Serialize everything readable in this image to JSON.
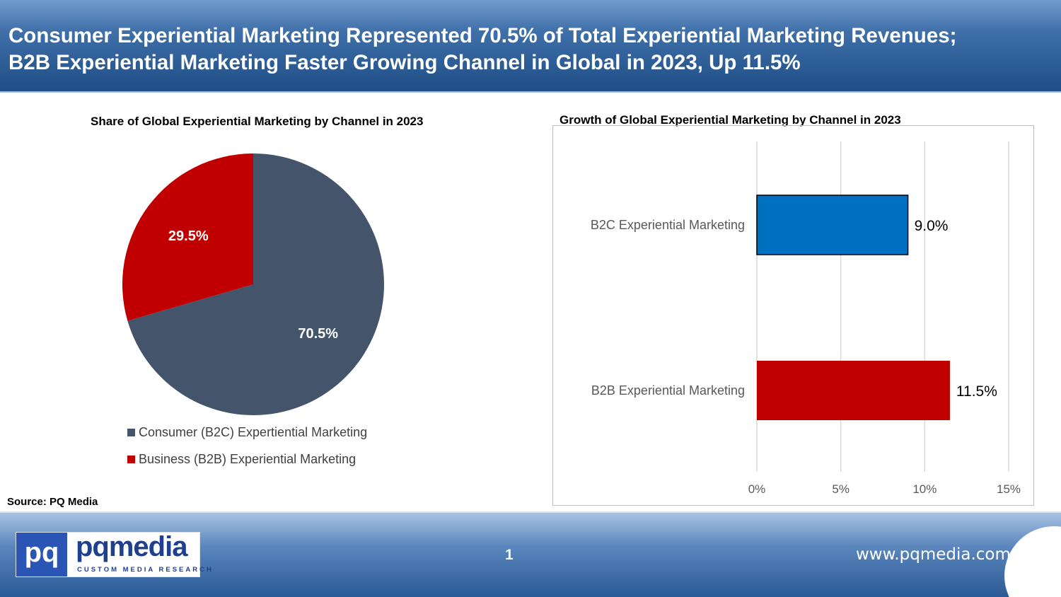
{
  "header": {
    "title_line1": "Consumer Experiential Marketing Represented 70.5% of Total Experiential Marketing Revenues;",
    "title_line2": "B2B Experiential Marketing Faster Growing Channel in Global in 2023, Up 11.5%"
  },
  "source": "Source: PQ Media",
  "footer": {
    "logo_pq": "pq",
    "logo_word": "pqmedia",
    "logo_tagline": "CUSTOM MEDIA RESEARCH",
    "page_number": "1",
    "url": "www.pqmedia.com"
  },
  "colors": {
    "b2c_pie": "#44546a",
    "b2b": "#c00000",
    "b2c_bar": "#0070c0",
    "header": "#2f5e98"
  },
  "chart_data": [
    {
      "type": "pie",
      "title": "Share of Global Experiential Marketing by Channel in 2023",
      "slices": [
        {
          "name": "Consumer (B2C) Expertiential Marketing",
          "value": 70.5,
          "label": "70.5%",
          "color": "#44546a"
        },
        {
          "name": "Business (B2B) Experiential Marketing",
          "value": 29.5,
          "label": "29.5%",
          "color": "#c00000"
        }
      ],
      "legend_position": "bottom"
    },
    {
      "type": "bar",
      "orientation": "horizontal",
      "title": "Growth of Global Experiential Marketing by Channel in 2023",
      "categories": [
        "B2C Experiential Marketing",
        "B2B Experiential Marketing"
      ],
      "values": [
        9.0,
        11.5
      ],
      "value_labels": [
        "9.0%",
        "11.5%"
      ],
      "colors": [
        "#0070c0",
        "#c00000"
      ],
      "xlim": [
        0,
        15
      ],
      "xticks": [
        0,
        5,
        10,
        15
      ],
      "xtick_labels": [
        "0%",
        "5%",
        "10%",
        "15%"
      ],
      "grid": true
    }
  ]
}
